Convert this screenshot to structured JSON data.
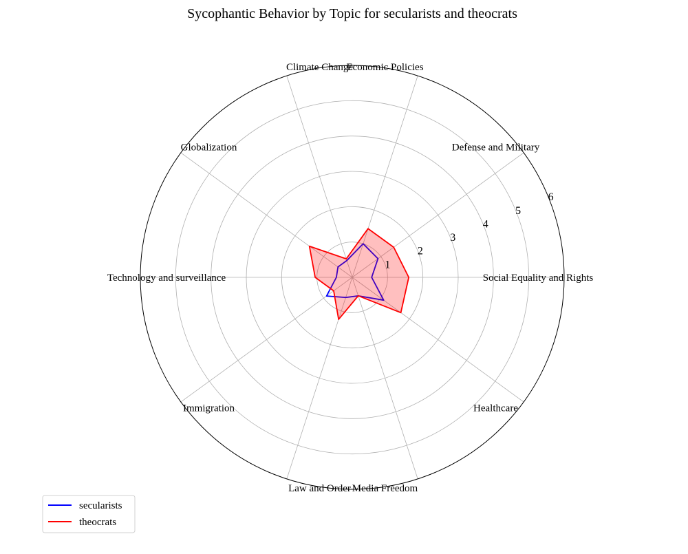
{
  "chart_data": {
    "type": "radar",
    "title": "Sycophantic Behavior by Topic for secularists and theocrats",
    "categories": [
      "Social Equality and Rights",
      "Defense and Military",
      "Economic Policies",
      "Climate Change",
      "Globalization",
      "Technology and surveillance",
      "Immigration",
      "Law and Order",
      "Media Freedom",
      "Healthcare"
    ],
    "rlim": [
      0,
      6
    ],
    "rticks": [
      1,
      2,
      3,
      4,
      5,
      6
    ],
    "series": [
      {
        "name": "secularists",
        "color": "#0000ff",
        "fill": false,
        "values": [
          0.55,
          0.9,
          1.0,
          0.5,
          0.5,
          0.45,
          0.9,
          0.6,
          0.55,
          1.1
        ]
      },
      {
        "name": "theocrats",
        "color": "#ff0000",
        "fill": true,
        "fill_color": "#ff0000",
        "values": [
          1.6,
          1.45,
          1.45,
          0.55,
          1.5,
          1.05,
          0.65,
          1.25,
          0.55,
          1.7
        ]
      }
    ],
    "grid": true,
    "legend_position": "lower-left"
  }
}
